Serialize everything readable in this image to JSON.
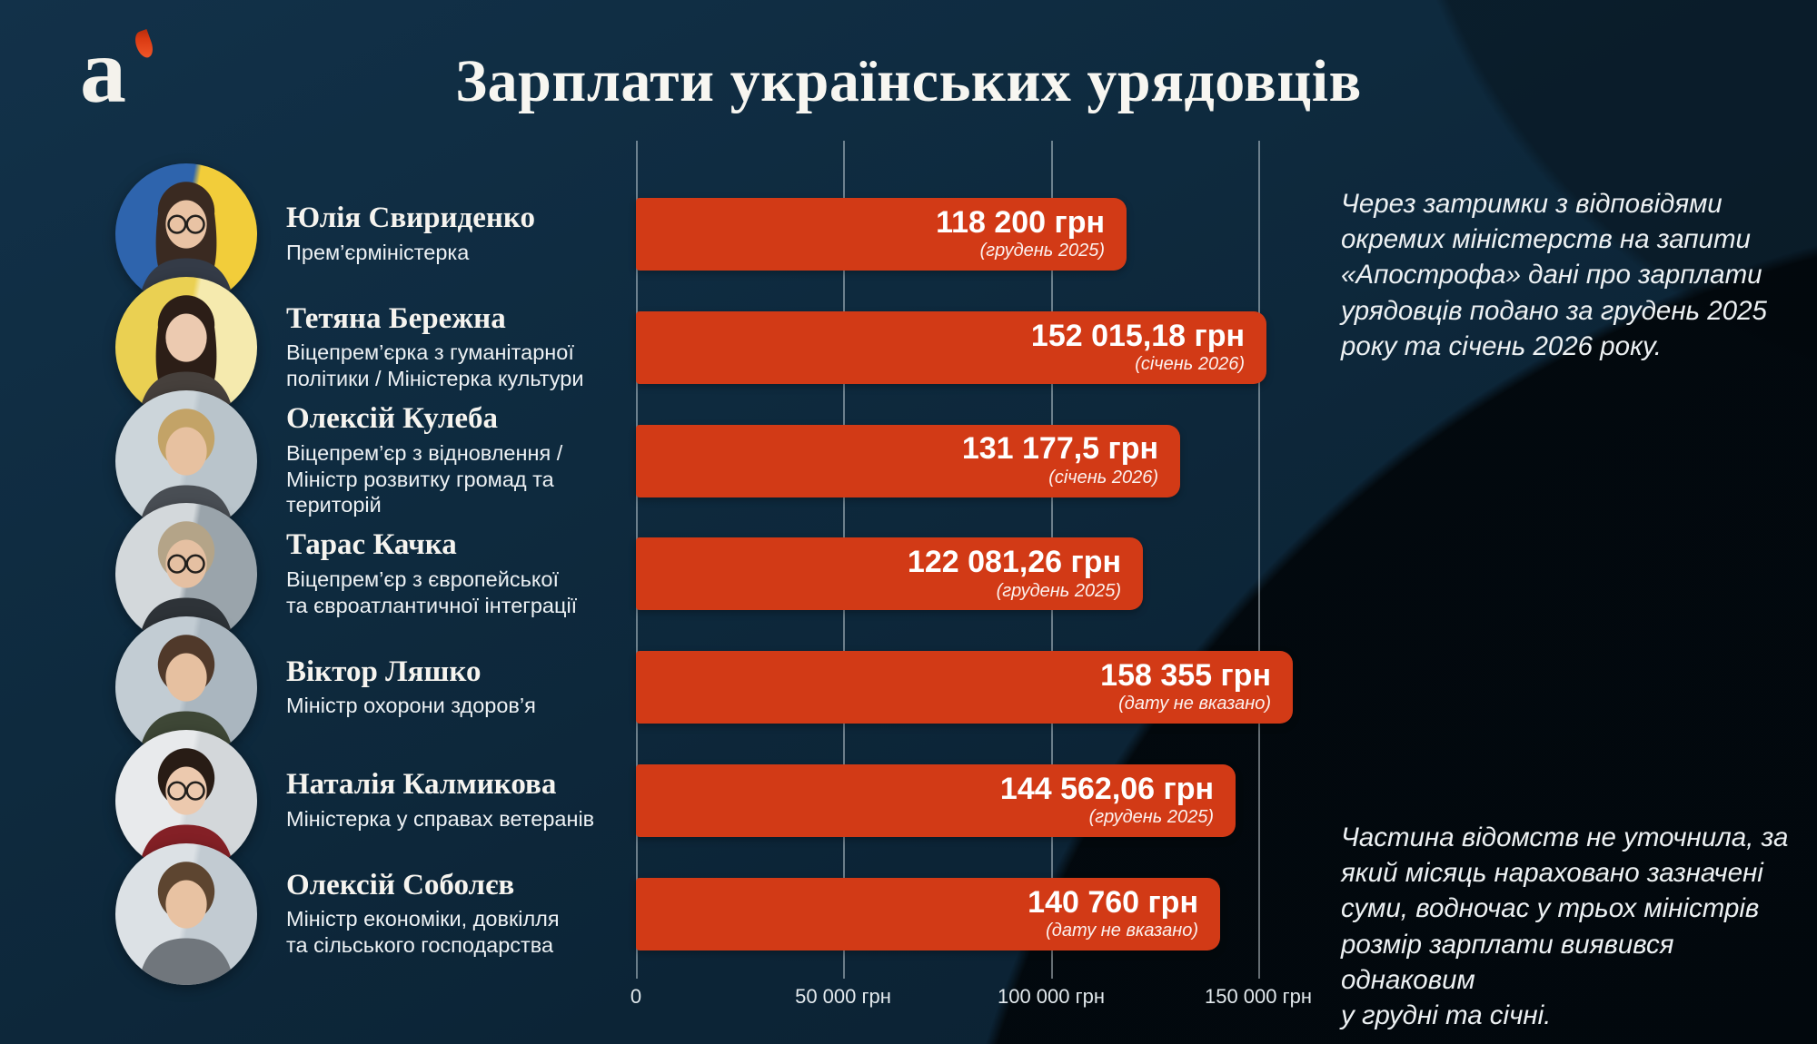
{
  "header": {
    "title": "Зарплати українських урядовців",
    "logo_letter": "а",
    "logo_name": "apostrof-logo"
  },
  "chart_data": {
    "type": "bar",
    "orientation": "horizontal",
    "title": "Зарплати українських урядовців",
    "unit": "грн",
    "grid": true,
    "xlim": [
      0,
      160000
    ],
    "bar_color": "#d23a16",
    "ticks": [
      {
        "label": "0",
        "value": 0
      },
      {
        "label": "50 000 грн",
        "value": 50000
      },
      {
        "label": "100 000 грн",
        "value": 100000
      },
      {
        "label": "150 000 грн",
        "value": 150000
      }
    ],
    "officials": [
      {
        "name": "Юлія Свириденко",
        "position": "Прем’єрміністерка",
        "value": 118200,
        "value_label": "118 200 грн",
        "period": "(грудень 2025)",
        "avatar": {
          "glasses": true,
          "long_hair": true,
          "colors": {
            "bg": "#2e64ad",
            "bg2": "#f2cd3a",
            "hair": "#3a2a21",
            "skin": "#e9c3a4",
            "clothes": "#343b47"
          }
        }
      },
      {
        "name": "Тетяна Бережна",
        "position": "Віцепрем’єрка з гуманітарної\nполітики / Міністерка культури",
        "value": 152015.18,
        "value_label": "152 015,18 грн",
        "period": "(січень 2026)",
        "avatar": {
          "glasses": false,
          "long_hair": true,
          "colors": {
            "bg": "#ead052",
            "bg2": "#f5eaae",
            "hair": "#2c1e17",
            "skin": "#eccab0",
            "clothes": "#46403c"
          }
        }
      },
      {
        "name": "Олексій Кулеба",
        "position": "Віцепрем’єр з відновлення /\nМіністр розвитку громад та\nтериторій",
        "value": 131177.5,
        "value_label": "131 177,5 грн",
        "period": "(січень 2026)",
        "avatar": {
          "glasses": false,
          "long_hair": false,
          "colors": {
            "bg": "#ccd5da",
            "bg2": "#b9c4cb",
            "hair": "#c3a367",
            "skin": "#e7c1a0",
            "clothes": "#494e54"
          }
        }
      },
      {
        "name": "Тарас Качка",
        "position": "Віцепрем’єр з європейської\nта євроатлантичної інтеграції",
        "value": 122081.26,
        "value_label": "122 081,26 грн",
        "period": "(грудень 2025)",
        "avatar": {
          "glasses": true,
          "long_hair": false,
          "colors": {
            "bg": "#d3d8db",
            "bg2": "#9aa4ab",
            "hair": "#b4a488",
            "skin": "#e5c0a2",
            "clothes": "#2e3338"
          }
        }
      },
      {
        "name": "Віктор Ляшко",
        "position": "Міністр охорони здоров’я",
        "value": 158355,
        "value_label": "158 355 грн",
        "period": "(дату не вказано)",
        "avatar": {
          "glasses": false,
          "long_hair": false,
          "colors": {
            "bg": "#c2ccd3",
            "bg2": "#aab6bf",
            "hair": "#50392a",
            "skin": "#e6c0a0",
            "clothes": "#3e4736"
          }
        }
      },
      {
        "name": "Наталія Калмикова",
        "position": "Міністерка у справах ветеранів",
        "value": 144562.06,
        "value_label": "144 562,06 грн",
        "period": "(грудень 2025)",
        "avatar": {
          "glasses": true,
          "long_hair": false,
          "colors": {
            "bg": "#e8eaec",
            "bg2": "#d3d7da",
            "hair": "#281c15",
            "skin": "#ecc9ae",
            "clothes": "#842026"
          }
        }
      },
      {
        "name": "Олексій Соболєв",
        "position": "Міністр економіки, довкілля\nта сільського господарства",
        "value": 140760,
        "value_label": "140 760 грн",
        "period": "(дату не вказано)",
        "avatar": {
          "glasses": false,
          "long_hair": false,
          "colors": {
            "bg": "#dce1e5",
            "bg2": "#c2cbd2",
            "hair": "#5d4530",
            "skin": "#e8c2a2",
            "clothes": "#70767c"
          }
        }
      }
    ]
  },
  "notes": {
    "top": "Через затримки з відповідями\nокремих міністерств на запити\n«Апострофа» дані про зарплати\nурядовців подано за грудень 2025\nроку та січень 2026 року.",
    "bottom": "Частина відомств не уточнила, за\nякий місяць нараховано зазначені\nсуми, водночас у трьох міністрів\nрозмір зарплати виявився однаковим\nу грудні та січні."
  },
  "colors": {
    "background_navy": "#0e2a3e",
    "background_dark_circle": "#04090d",
    "bar": "#d23a16",
    "text": "#f2f4f6",
    "gridline": "rgba(225,235,240,0.45)"
  }
}
